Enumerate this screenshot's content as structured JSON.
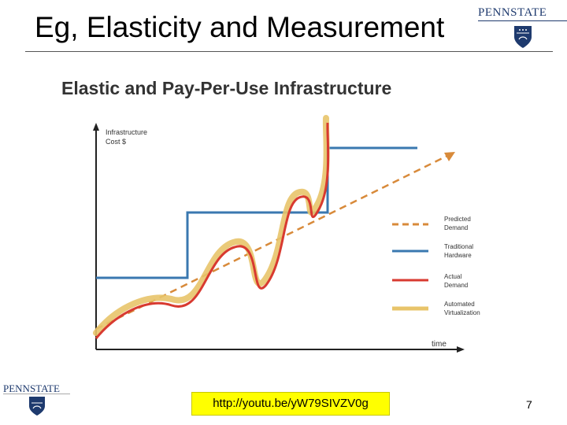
{
  "slide": {
    "title": "Eg, Elasticity and Measurement",
    "link": "http://youtu.be/yW79SIVZV0g",
    "page_number": "7"
  },
  "logo": {
    "wordmark": "PENNSTATE",
    "shield_icon": "penn-state-shield-icon",
    "color": "#1e3a6e"
  },
  "diagram": {
    "title": "Elastic and Pay-Per-Use Infrastructure",
    "y_axis_label_line1": "Infrastructure",
    "y_axis_label_line2": "Cost $",
    "x_axis_label": "time",
    "legend": [
      {
        "line1": "Predicted",
        "line2": "Demand",
        "color": "#d88a3a",
        "style": "dashed"
      },
      {
        "line1": "Traditional",
        "line2": "Hardware",
        "color": "#3a78b0",
        "style": "solid"
      },
      {
        "line1": "Actual",
        "line2": "Demand",
        "color": "#d83a30",
        "style": "solid"
      },
      {
        "line1": "Automated",
        "line2": "Virtualization",
        "color": "#e8c46a",
        "style": "solid"
      }
    ]
  }
}
